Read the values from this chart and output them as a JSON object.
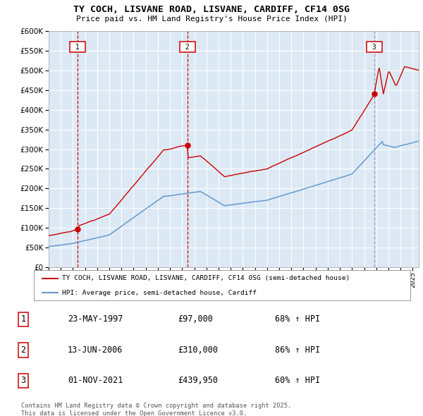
{
  "title": "TY COCH, LISVANE ROAD, LISVANE, CARDIFF, CF14 0SG",
  "subtitle": "Price paid vs. HM Land Registry's House Price Index (HPI)",
  "legend_red": "TY COCH, LISVANE ROAD, LISVANE, CARDIFF, CF14 0SG (semi-detached house)",
  "legend_blue": "HPI: Average price, semi-detached house, Cardiff",
  "footer": "Contains HM Land Registry data © Crown copyright and database right 2025.\nThis data is licensed under the Open Government Licence v3.0.",
  "transactions": [
    {
      "num": 1,
      "date": "23-MAY-1997",
      "price": 97000,
      "price_str": "£97,000",
      "pct": "68% ↑ HPI",
      "year": 1997.39
    },
    {
      "num": 2,
      "date": "13-JUN-2006",
      "price": 310000,
      "price_str": "£310,000",
      "pct": "86% ↑ HPI",
      "year": 2006.45
    },
    {
      "num": 3,
      "date": "01-NOV-2021",
      "price": 439950,
      "price_str": "£439,950",
      "pct": "60% ↑ HPI",
      "year": 2021.83
    }
  ],
  "red_color": "#cc0000",
  "blue_color": "#6699cc",
  "bg_color": "#dce9f5",
  "grid_color": "#ffffff",
  "ylim": [
    0,
    600000
  ],
  "yticks": [
    0,
    50000,
    100000,
    150000,
    200000,
    250000,
    300000,
    350000,
    400000,
    450000,
    500000,
    550000,
    600000
  ],
  "xlim_start": 1995.0,
  "xlim_end": 2025.5
}
